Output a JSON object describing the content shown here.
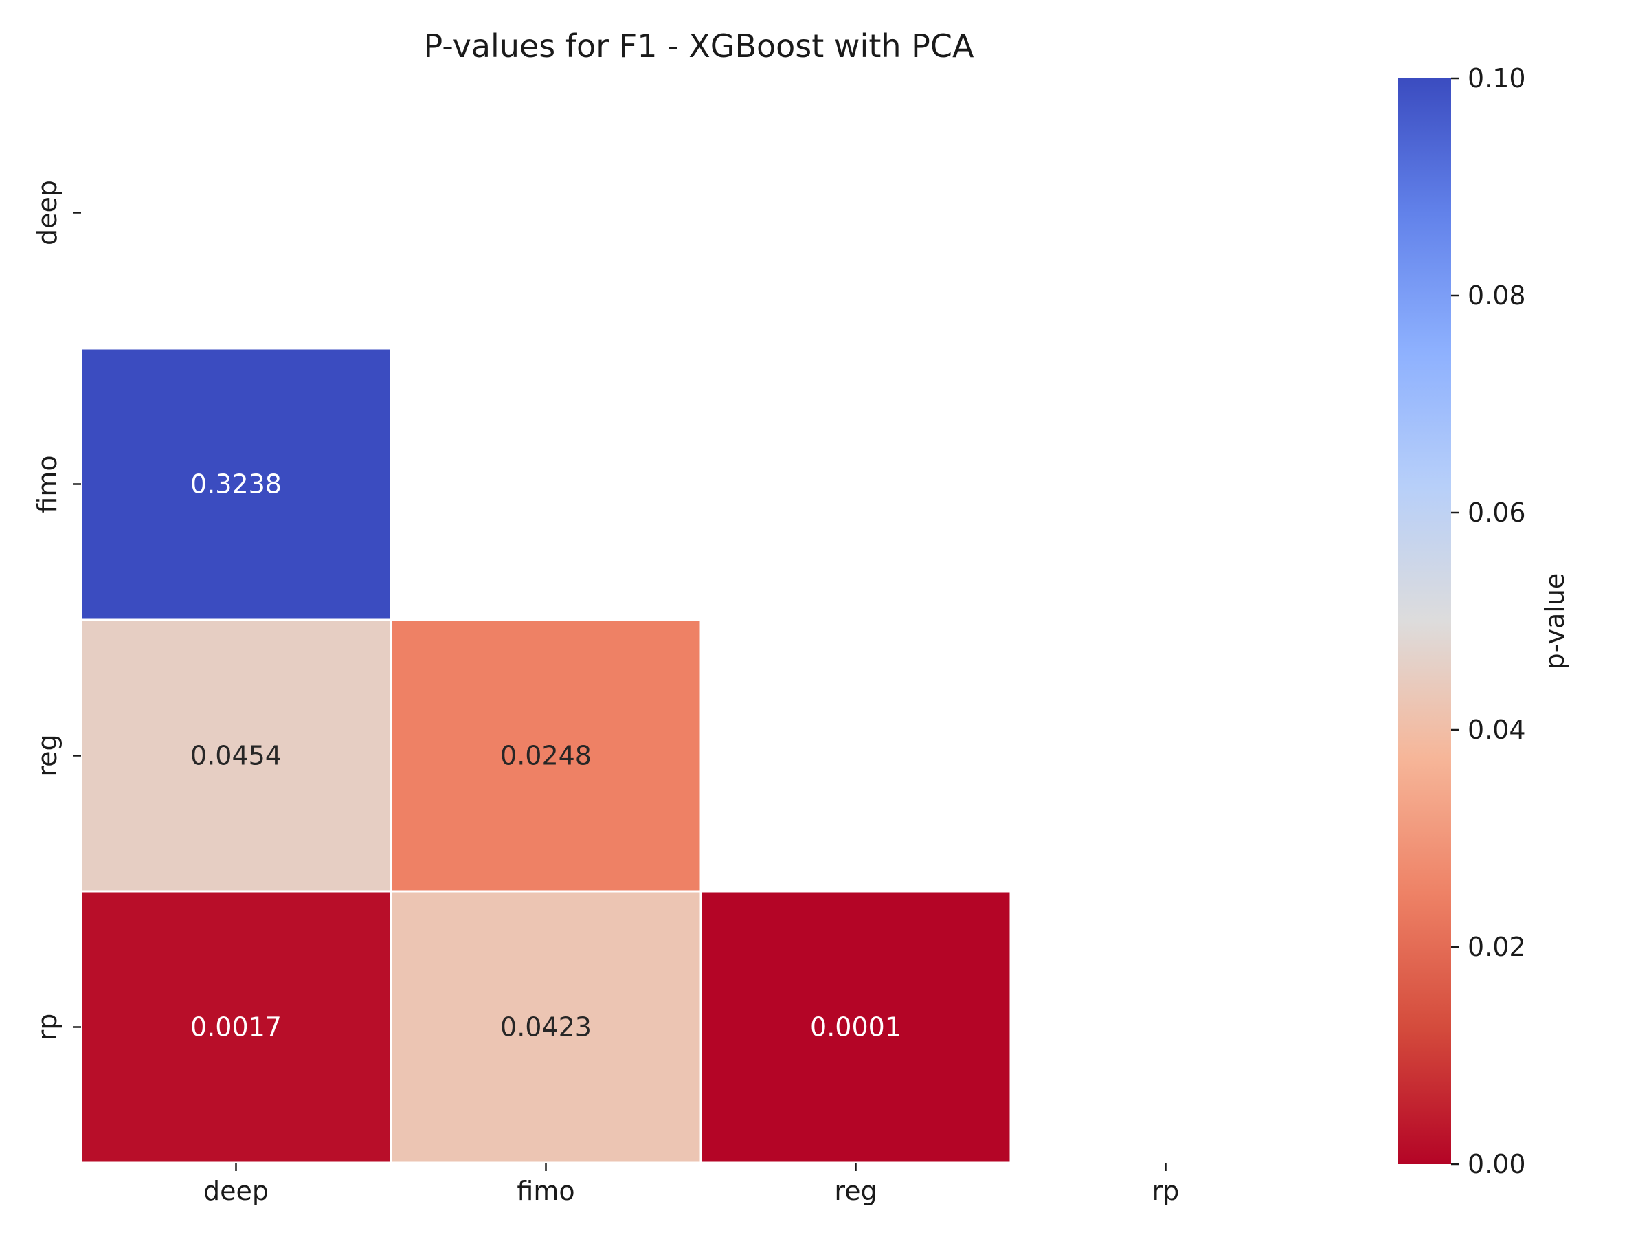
{
  "chart_data": {
    "type": "heatmap",
    "title": "P-values for F1 - XGBoost with PCA",
    "x_categories": [
      "deep",
      "fimo",
      "reg",
      "rp"
    ],
    "y_categories": [
      "deep",
      "fimo",
      "reg",
      "rp"
    ],
    "mask": "upper-triangle-including-diagonal",
    "cells": [
      {
        "row": "fimo",
        "col": "deep",
        "value": 0.3238,
        "label": "0.3238"
      },
      {
        "row": "reg",
        "col": "deep",
        "value": 0.0454,
        "label": "0.0454"
      },
      {
        "row": "reg",
        "col": "fimo",
        "value": 0.0248,
        "label": "0.0248"
      },
      {
        "row": "rp",
        "col": "deep",
        "value": 0.0017,
        "label": "0.0017"
      },
      {
        "row": "rp",
        "col": "fimo",
        "value": 0.0423,
        "label": "0.0423"
      },
      {
        "row": "rp",
        "col": "reg",
        "value": 0.0001,
        "label": "0.0001"
      }
    ],
    "colorbar": {
      "label": "p-value",
      "vmin": 0.0,
      "vmax": 0.1,
      "colormap": "coolwarm_r",
      "ticks": [
        "0.00",
        "0.02",
        "0.04",
        "0.06",
        "0.08",
        "0.10"
      ]
    },
    "colors": {
      "low": "#b40426",
      "mid": "#dddcdc",
      "high": "#3b4cc0"
    },
    "grid": false
  }
}
